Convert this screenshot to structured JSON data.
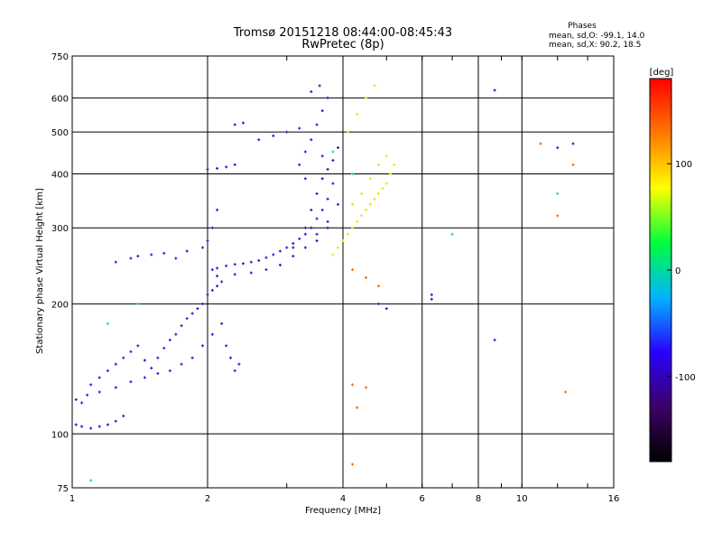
{
  "chart_data": {
    "type": "scatter",
    "title": "Tromsø 20151218 08:44:00-08:45:43",
    "subtitle": "RwPretec (8p)",
    "xlabel": "Frequency [MHz]",
    "ylabel": "Stationary phase Virtual Height [km]",
    "x_scale": "log",
    "y_scale": "log",
    "xlim": [
      1,
      16
    ],
    "ylim": [
      75,
      750
    ],
    "x_ticks": [
      1,
      2,
      4,
      6,
      8,
      10,
      16
    ],
    "y_ticks": [
      75,
      100,
      200,
      300,
      400,
      500,
      600,
      750
    ],
    "grid": true,
    "stats_header": "Phases",
    "stats_o": "mean, sd,O: -99.1, 14.0",
    "stats_x": "mean, sd,X:  90.2, 18.5",
    "colorbar": {
      "label": "[deg]",
      "range": [
        -180,
        180
      ],
      "ticks": [
        100,
        0,
        -100
      ],
      "colors": [
        "#000000",
        "#3d0066",
        "#2a00ff",
        "#00b4ff",
        "#00ff3c",
        "#ffff00",
        "#ff7800",
        "#ff0000"
      ]
    },
    "series": [
      {
        "description_color": "blue (O-mode, about -100 deg)",
        "points": [
          [
            1.02,
            120
          ],
          [
            1.05,
            118
          ],
          [
            1.08,
            123
          ],
          [
            1.1,
            130
          ],
          [
            1.15,
            135
          ],
          [
            1.2,
            140
          ],
          [
            1.25,
            145
          ],
          [
            1.3,
            150
          ],
          [
            1.35,
            155
          ],
          [
            1.4,
            160
          ],
          [
            1.45,
            148
          ],
          [
            1.5,
            142
          ],
          [
            1.55,
            150
          ],
          [
            1.6,
            158
          ],
          [
            1.65,
            165
          ],
          [
            1.7,
            170
          ],
          [
            1.75,
            178
          ],
          [
            1.8,
            185
          ],
          [
            1.85,
            190
          ],
          [
            1.9,
            195
          ],
          [
            1.95,
            200
          ],
          [
            2.0,
            210
          ],
          [
            2.05,
            215
          ],
          [
            2.1,
            220
          ],
          [
            2.15,
            225
          ],
          [
            1.15,
            125
          ],
          [
            1.25,
            128
          ],
          [
            1.35,
            132
          ],
          [
            1.45,
            135
          ],
          [
            1.55,
            138
          ],
          [
            1.65,
            140
          ],
          [
            1.75,
            145
          ],
          [
            1.85,
            150
          ],
          [
            1.95,
            160
          ],
          [
            2.05,
            170
          ],
          [
            2.15,
            180
          ],
          [
            2.2,
            160
          ],
          [
            2.25,
            150
          ],
          [
            2.3,
            140
          ],
          [
            2.35,
            145
          ],
          [
            1.02,
            105
          ],
          [
            1.05,
            104
          ],
          [
            1.1,
            103
          ],
          [
            1.15,
            104
          ],
          [
            1.2,
            105
          ],
          [
            1.25,
            107
          ],
          [
            1.3,
            110
          ],
          [
            2.05,
            240
          ],
          [
            2.1,
            242
          ],
          [
            2.2,
            245
          ],
          [
            2.3,
            247
          ],
          [
            2.4,
            248
          ],
          [
            2.5,
            250
          ],
          [
            2.6,
            252
          ],
          [
            2.7,
            256
          ],
          [
            2.8,
            260
          ],
          [
            2.9,
            265
          ],
          [
            3.0,
            270
          ],
          [
            3.1,
            276
          ],
          [
            3.2,
            283
          ],
          [
            3.3,
            290
          ],
          [
            3.4,
            300
          ],
          [
            3.5,
            315
          ],
          [
            3.6,
            330
          ],
          [
            3.7,
            350
          ],
          [
            3.8,
            380
          ],
          [
            2.1,
            232
          ],
          [
            2.3,
            234
          ],
          [
            2.5,
            236
          ],
          [
            2.7,
            240
          ],
          [
            2.9,
            246
          ],
          [
            3.1,
            258
          ],
          [
            3.3,
            270
          ],
          [
            3.5,
            290
          ],
          [
            3.7,
            310
          ],
          [
            3.9,
            340
          ],
          [
            3.2,
            420
          ],
          [
            3.3,
            450
          ],
          [
            3.4,
            480
          ],
          [
            3.5,
            520
          ],
          [
            3.6,
            560
          ],
          [
            3.7,
            600
          ],
          [
            3.4,
            620
          ],
          [
            3.55,
            640
          ],
          [
            3.3,
            390
          ],
          [
            3.6,
            440
          ],
          [
            1.25,
            250
          ],
          [
            1.35,
            255
          ],
          [
            1.4,
            258
          ],
          [
            1.5,
            260
          ],
          [
            1.6,
            262
          ],
          [
            1.7,
            255
          ],
          [
            1.8,
            265
          ],
          [
            1.95,
            270
          ],
          [
            2.0,
            280
          ],
          [
            2.05,
            300
          ],
          [
            2.1,
            330
          ],
          [
            2.0,
            410
          ],
          [
            2.1,
            412
          ],
          [
            2.2,
            415
          ],
          [
            2.3,
            420
          ],
          [
            2.3,
            520
          ],
          [
            2.4,
            525
          ],
          [
            2.6,
            480
          ],
          [
            2.8,
            490
          ],
          [
            3.0,
            500
          ],
          [
            3.2,
            510
          ]
        ]
      },
      {
        "description_color": "purple (about -130 deg)",
        "points": [
          [
            3.1,
            270
          ],
          [
            3.3,
            300
          ],
          [
            3.4,
            330
          ],
          [
            3.5,
            360
          ],
          [
            3.6,
            390
          ],
          [
            3.7,
            410
          ],
          [
            3.8,
            430
          ],
          [
            3.9,
            460
          ],
          [
            3.5,
            280
          ],
          [
            3.7,
            300
          ]
        ]
      },
      {
        "description_color": "yellow (X-mode, about 90 deg)",
        "points": [
          [
            3.8,
            260
          ],
          [
            3.9,
            270
          ],
          [
            4.0,
            280
          ],
          [
            4.1,
            290
          ],
          [
            4.2,
            300
          ],
          [
            4.3,
            310
          ],
          [
            4.4,
            320
          ],
          [
            4.5,
            330
          ],
          [
            4.6,
            340
          ],
          [
            4.7,
            350
          ],
          [
            4.8,
            360
          ],
          [
            4.9,
            370
          ],
          [
            5.0,
            380
          ],
          [
            5.1,
            400
          ],
          [
            4.2,
            340
          ],
          [
            4.4,
            360
          ],
          [
            4.6,
            390
          ],
          [
            4.8,
            420
          ],
          [
            5.0,
            440
          ],
          [
            4.1,
            500
          ],
          [
            4.3,
            550
          ],
          [
            4.5,
            600
          ],
          [
            4.7,
            640
          ],
          [
            5.2,
            420
          ]
        ]
      },
      {
        "description_color": "orange / red (about 120-180 deg)",
        "points": [
          [
            4.2,
            240
          ],
          [
            4.5,
            230
          ],
          [
            4.8,
            220
          ],
          [
            4.2,
            130
          ],
          [
            4.5,
            128
          ],
          [
            4.3,
            115
          ],
          [
            4.2,
            85
          ],
          [
            11.0,
            470
          ],
          [
            13.0,
            420
          ],
          [
            12.0,
            320
          ],
          [
            12.5,
            125
          ]
        ]
      },
      {
        "description_color": "cyan / green scattered (about 0-50 deg)",
        "points": [
          [
            1.1,
            78
          ],
          [
            1.4,
            200
          ],
          [
            1.2,
            180
          ],
          [
            3.8,
            450
          ],
          [
            4.2,
            400
          ],
          [
            7.0,
            290
          ],
          [
            12.0,
            360
          ]
        ]
      },
      {
        "description_color": "isolated blue",
        "points": [
          [
            6.3,
            210
          ],
          [
            6.3,
            205
          ],
          [
            8.7,
            165
          ],
          [
            8.7,
            625
          ],
          [
            12.0,
            460
          ],
          [
            13.0,
            470
          ],
          [
            4.8,
            200
          ],
          [
            5.0,
            195
          ]
        ]
      }
    ]
  },
  "series_colors": [
    "#1f1fd8",
    "#4a0a9a",
    "#f0e20a",
    "#ff6a00",
    "#19d2c8",
    "#1f1fd8"
  ]
}
